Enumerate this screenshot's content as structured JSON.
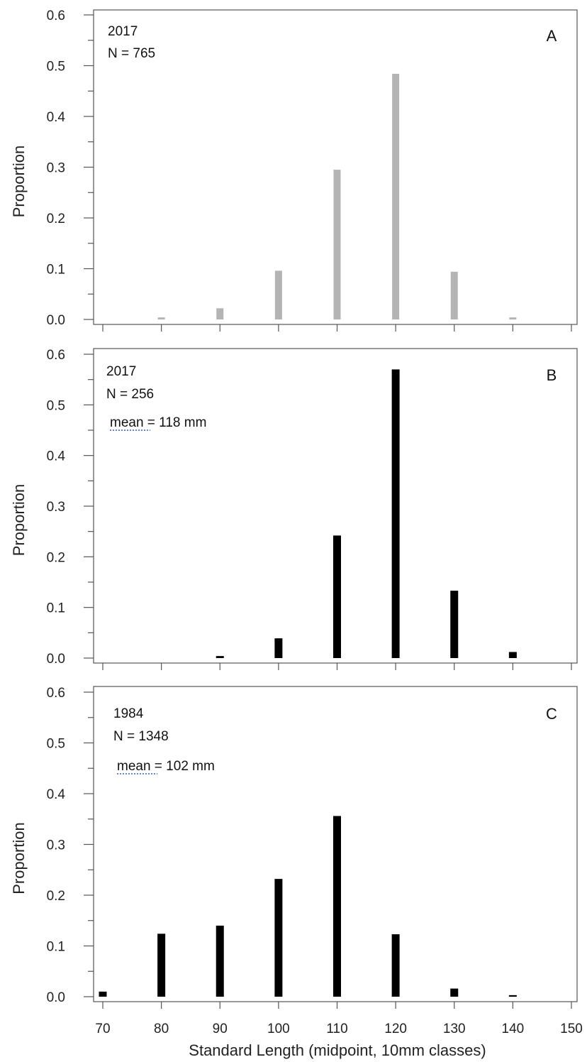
{
  "chart_data": [
    {
      "type": "bar",
      "panel": "A",
      "annotations": [
        "2017",
        "N = 765"
      ],
      "ylabel": "Proportion",
      "ylim": [
        0,
        0.6
      ],
      "xlim": [
        70,
        150
      ],
      "color": "#b4b4b4",
      "x": [
        80,
        90,
        100,
        110,
        120,
        130,
        140
      ],
      "values": [
        0.004,
        0.022,
        0.096,
        0.295,
        0.484,
        0.094,
        0.004
      ]
    },
    {
      "type": "bar",
      "panel": "B",
      "annotations": [
        "2017",
        "N = 256",
        "mean = 118 mm"
      ],
      "ylabel": "Proportion",
      "ylim": [
        0,
        0.6
      ],
      "xlim": [
        70,
        150
      ],
      "color": "#000000",
      "x": [
        90,
        100,
        110,
        120,
        130,
        140
      ],
      "values": [
        0.004,
        0.039,
        0.242,
        0.57,
        0.133,
        0.012
      ]
    },
    {
      "type": "bar",
      "panel": "C",
      "annotations": [
        "1984",
        "N = 1348",
        "mean = 102 mm"
      ],
      "ylabel": "Proportion",
      "ylim": [
        0,
        0.6
      ],
      "xlim": [
        70,
        150
      ],
      "color": "#000000",
      "x": [
        70,
        80,
        90,
        100,
        110,
        120,
        130,
        140
      ],
      "values": [
        0.01,
        0.124,
        0.14,
        0.232,
        0.356,
        0.123,
        0.016,
        0.003
      ],
      "xlabel": "Standard Length (midpoint, 10mm classes)"
    }
  ],
  "y_tick_labels": [
    "0.0",
    "0.1",
    "0.2",
    "0.3",
    "0.4",
    "0.5",
    "0.6"
  ],
  "x_tick_labels": [
    "70",
    "80",
    "90",
    "100",
    "110",
    "120",
    "130",
    "140",
    "150"
  ]
}
